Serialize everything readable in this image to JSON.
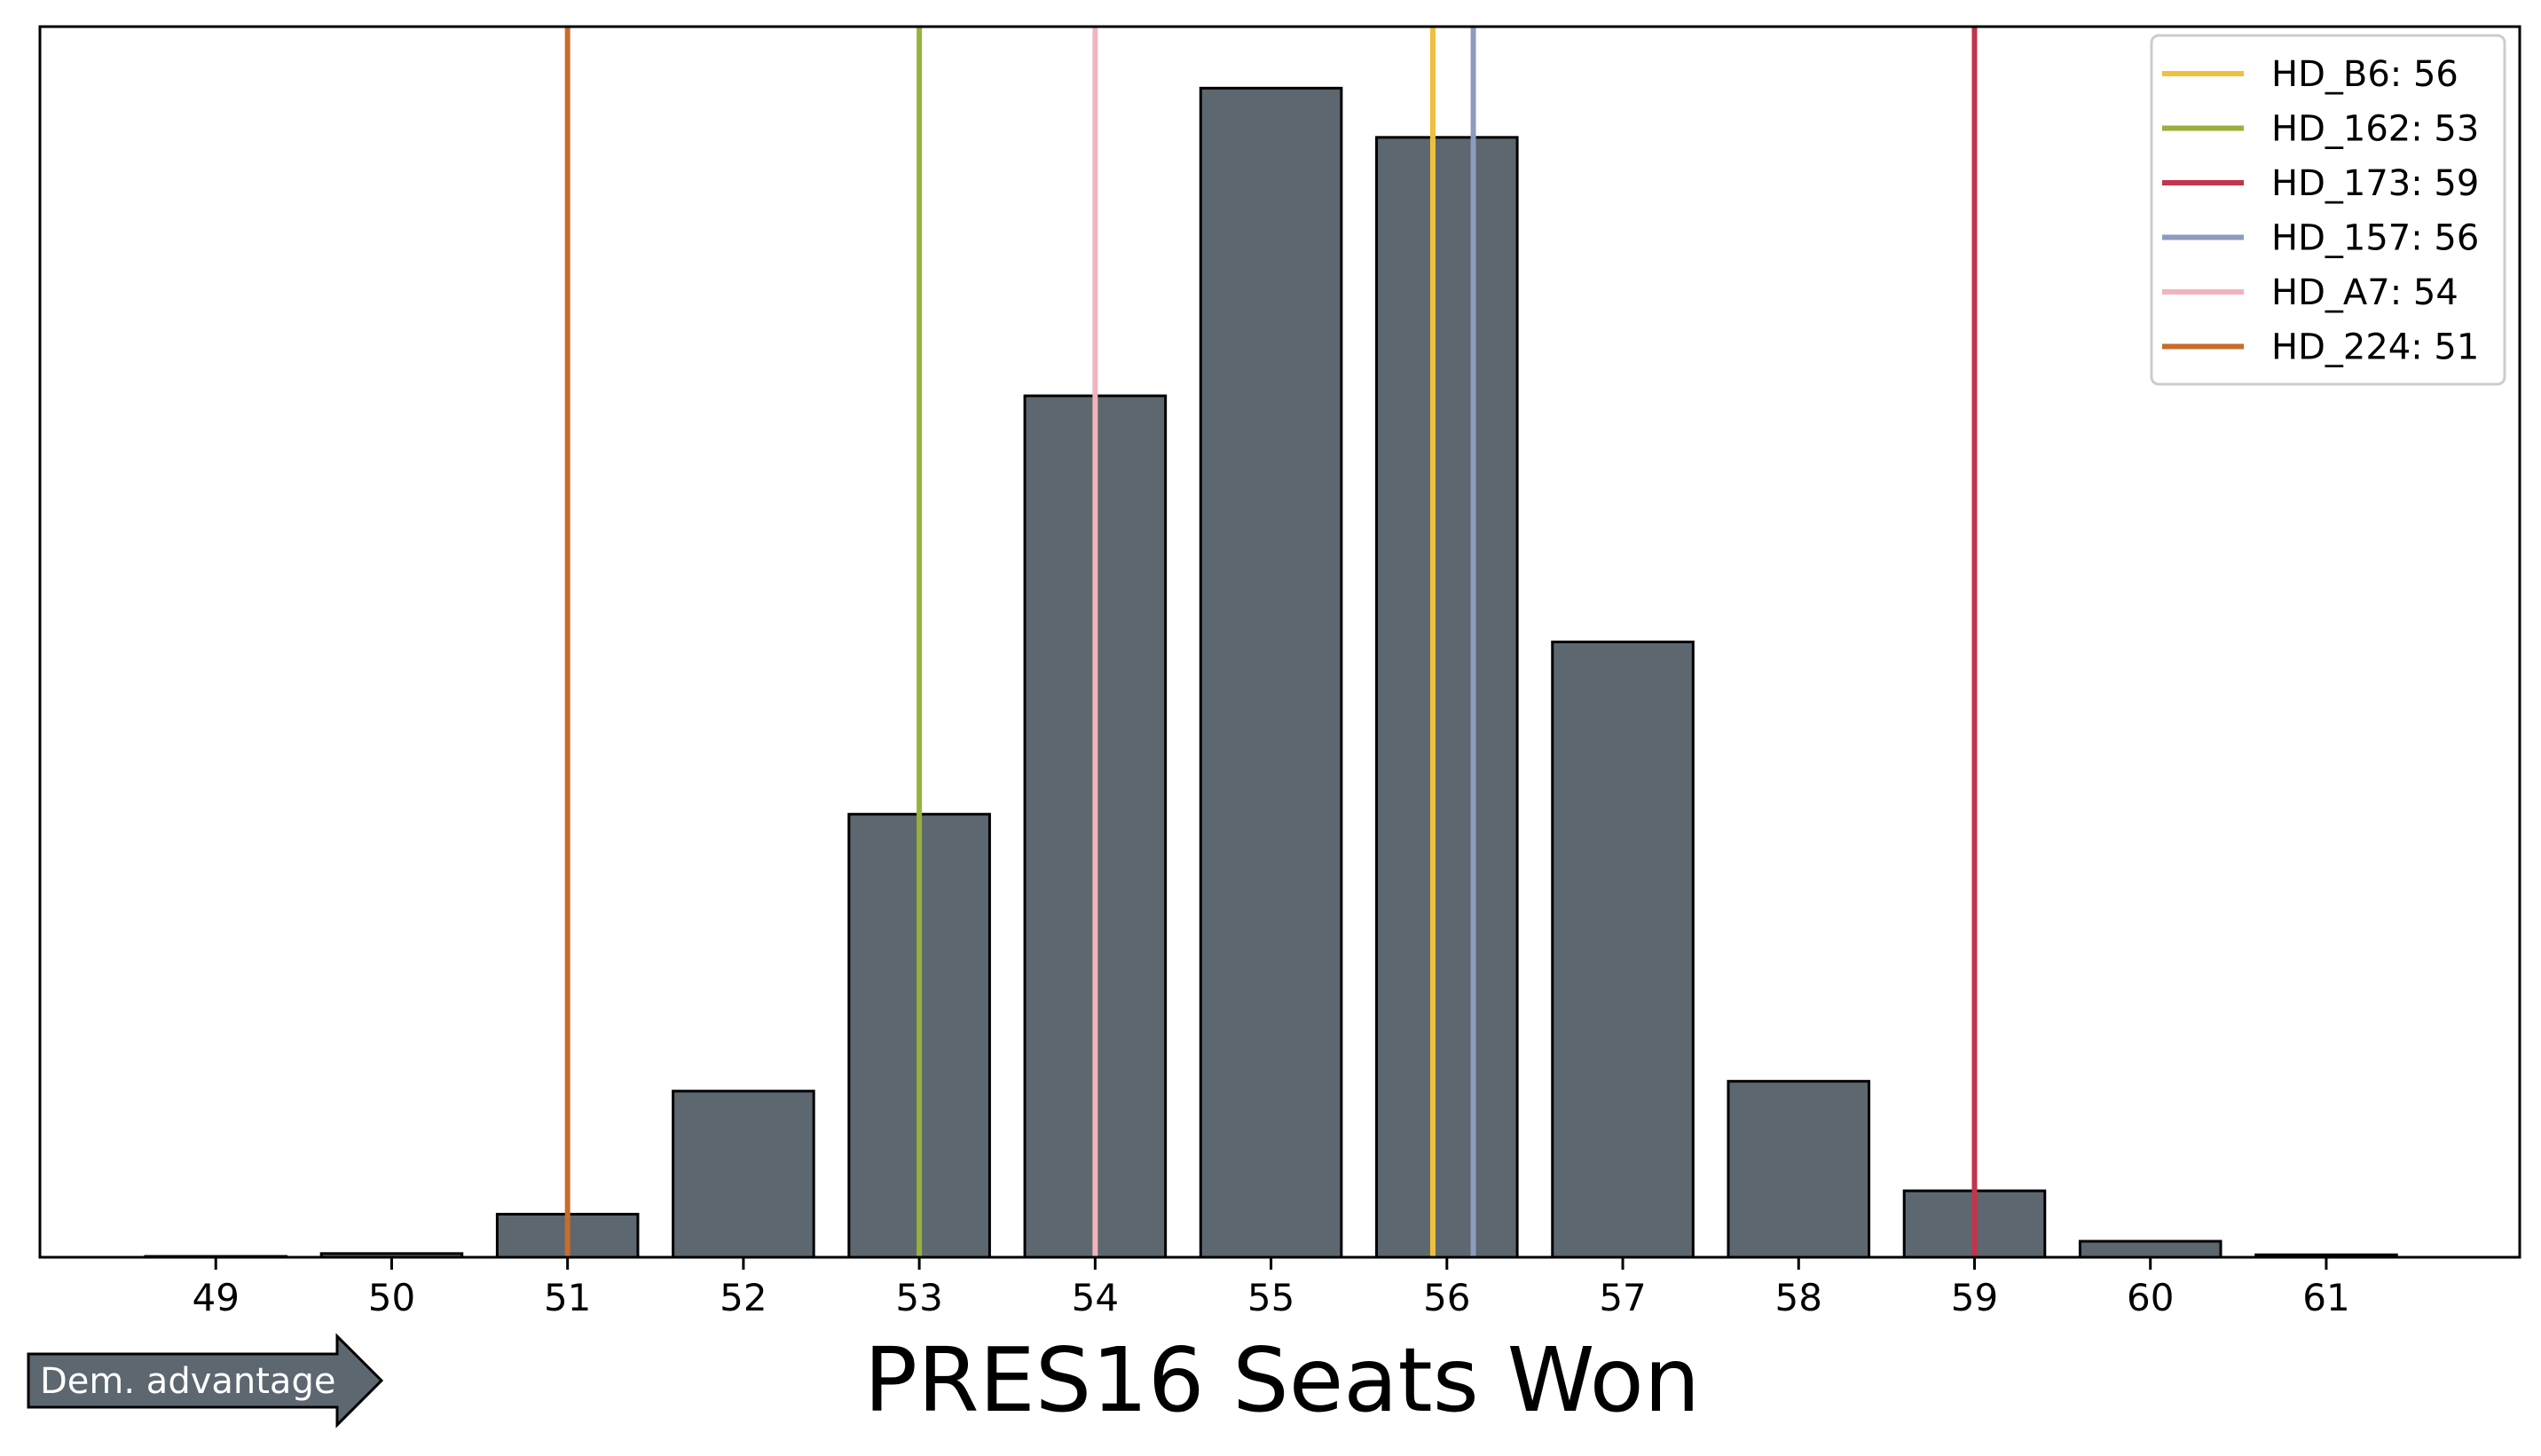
{
  "chart_data": {
    "type": "bar",
    "title": "",
    "xlabel": "PRES16 Seats Won",
    "ylabel": "",
    "categories": [
      "49",
      "50",
      "51",
      "52",
      "53",
      "54",
      "55",
      "56",
      "57",
      "58",
      "59",
      "60",
      "61"
    ],
    "x": [
      49,
      50,
      51,
      52,
      53,
      54,
      55,
      56,
      57,
      58,
      59,
      60,
      61
    ],
    "values": [
      0.07,
      0.3,
      3.5,
      13.5,
      36,
      70,
      95,
      91,
      50,
      14.3,
      5.4,
      1.3,
      0.2
    ],
    "xlim": [
      48.0,
      62.1
    ],
    "ylim": [
      0,
      100
    ],
    "bar_color": "#5d6770",
    "bar_edge_color": "#000000",
    "grid": false,
    "legend_placement": "top-right",
    "reference_lines": [
      {
        "label": "HD_B6: 56",
        "x": 55.92,
        "color": "#f0c03c"
      },
      {
        "label": "HD_162: 53",
        "x": 53.0,
        "color": "#98b13c"
      },
      {
        "label": "HD_173: 59",
        "x": 59.0,
        "color": "#c4344c"
      },
      {
        "label": "HD_157: 56",
        "x": 56.15,
        "color": "#8c9cbc"
      },
      {
        "label": "HD_A7: 54",
        "x": 54.0,
        "color": "#f0b4bc"
      },
      {
        "label": "HD_224: 51",
        "x": 51.0,
        "color": "#c86c2c"
      }
    ],
    "annotation": {
      "text": "Dem. advantage",
      "color": "#5d6770"
    }
  }
}
